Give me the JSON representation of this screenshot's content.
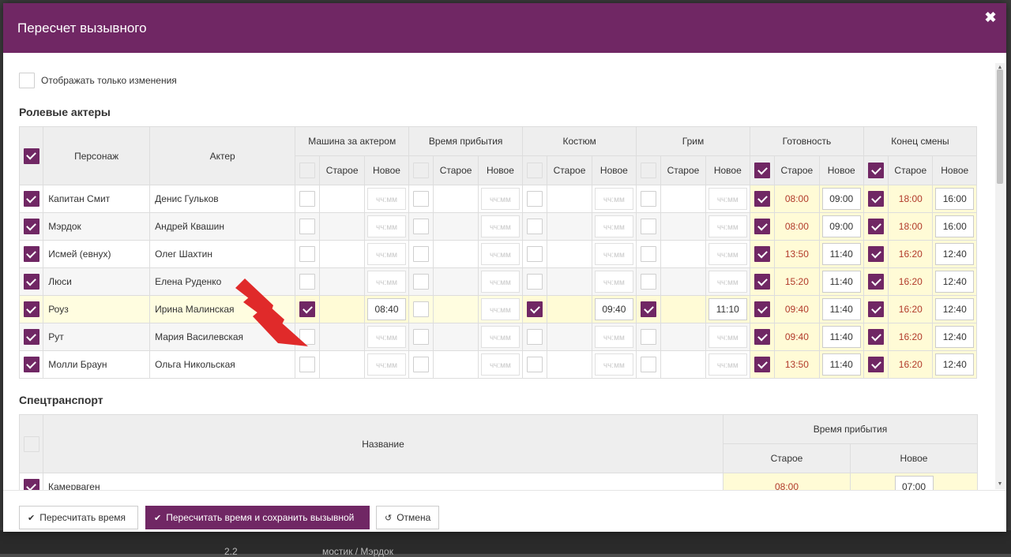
{
  "modal": {
    "title": "Пересчет вызывного",
    "close_icon": "✖"
  },
  "filter": {
    "show_changes_label": "Отображать только изменения",
    "checked": false
  },
  "actors_section": {
    "title": "Ролевые актеры",
    "headers": {
      "character": "Персонаж",
      "actor": "Актер",
      "groups": [
        "Машина за актером",
        "Время прибытия",
        "Костюм",
        "Грим",
        "Готовность",
        "Конец смены"
      ],
      "old": "Старое",
      "new": "Новое"
    },
    "placeholder": "чч:мм",
    "rows": [
      {
        "character": "Капитан Смит",
        "actor": "Денис Гульков",
        "ready_old": "08:00",
        "ready_new": "09:00",
        "end_old": "18:00",
        "end_new": "16:00"
      },
      {
        "character": "Мэрдок",
        "actor": "Андрей Квашин",
        "ready_old": "08:00",
        "ready_new": "09:00",
        "end_old": "18:00",
        "end_new": "16:00"
      },
      {
        "character": "Исмей (евнух)",
        "actor": "Олег Шахтин",
        "ready_old": "13:50",
        "ready_new": "11:40",
        "end_old": "16:20",
        "end_new": "12:40"
      },
      {
        "character": "Люси",
        "actor": "Елена Руденко",
        "ready_old": "15:20",
        "ready_new": "11:40",
        "end_old": "16:20",
        "end_new": "12:40"
      },
      {
        "character": "Роуз",
        "actor": "Ирина Малинская",
        "car_new": "08:40",
        "costume_new": "09:40",
        "makeup_new": "11:10",
        "ready_old": "09:40",
        "ready_new": "11:40",
        "end_old": "16:20",
        "end_new": "12:40"
      },
      {
        "character": "Рут",
        "actor": "Мария Василевская",
        "ready_old": "09:40",
        "ready_new": "11:40",
        "end_old": "16:20",
        "end_new": "12:40"
      },
      {
        "character": "Молли Браун",
        "actor": "Ольга Никольская",
        "ready_old": "13:50",
        "ready_new": "11:40",
        "end_old": "16:20",
        "end_new": "12:40"
      }
    ]
  },
  "transport_section": {
    "title": "Спецтранспорт",
    "headers": {
      "name": "Название",
      "arrival": "Время прибытия",
      "old": "Старое",
      "new": "Новое"
    },
    "rows": [
      {
        "name": "Камерваген",
        "old": "08:00",
        "new": "07:00"
      }
    ]
  },
  "footer": {
    "recalc_label": "Пересчитать время",
    "recalc_save_label": "Пересчитать время и сохранить вызывной",
    "cancel_label": "Отмена"
  },
  "backdrop": {
    "left_text": "2.2",
    "right_text": "мостик / Мэрдок"
  },
  "colors": {
    "brand": "#702764",
    "old_value": "#b13a2a",
    "highlight": "#fffbd6"
  },
  "annotation": {
    "arrow_icon": "red-chevron-arrow-icon"
  }
}
